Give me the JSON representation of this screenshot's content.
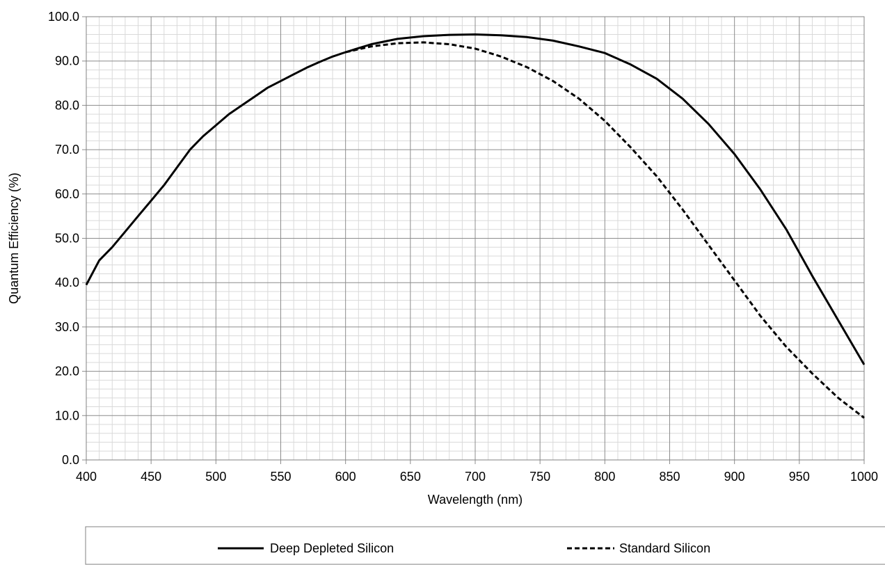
{
  "chart_data": {
    "type": "line",
    "xlabel": "Wavelength (nm)",
    "ylabel": "Quantum Efficiency (%)",
    "xlim": [
      400,
      1000
    ],
    "ylim": [
      0,
      100
    ],
    "x_ticks": [
      400,
      450,
      500,
      550,
      600,
      650,
      700,
      750,
      800,
      850,
      900,
      950,
      1000
    ],
    "y_ticks": [
      "0.0",
      "10.0",
      "20.0",
      "30.0",
      "40.0",
      "50.0",
      "60.0",
      "70.0",
      "80.0",
      "90.0",
      "100.0"
    ],
    "grid": "on",
    "legend_position": "bottom",
    "series": [
      {
        "name": "Deep Depleted Silicon",
        "style": "solid",
        "color": "#000000",
        "x": [
          400,
          410,
          420,
          430,
          440,
          450,
          460,
          470,
          480,
          490,
          500,
          510,
          520,
          530,
          540,
          550,
          560,
          570,
          580,
          590,
          600,
          620,
          640,
          660,
          680,
          700,
          720,
          740,
          760,
          780,
          800,
          820,
          840,
          860,
          880,
          900,
          920,
          940,
          960,
          980,
          1000
        ],
        "y": [
          39.5,
          45.0,
          48.0,
          51.5,
          55.0,
          58.5,
          62.0,
          66.0,
          70.0,
          73.0,
          75.5,
          78.0,
          80.0,
          82.0,
          84.0,
          85.5,
          87.0,
          88.5,
          89.8,
          91.0,
          92.0,
          93.8,
          95.0,
          95.6,
          95.9,
          96.0,
          95.8,
          95.4,
          94.6,
          93.3,
          91.8,
          89.2,
          86.0,
          81.5,
          75.8,
          69.0,
          61.0,
          52.0,
          41.5,
          31.5,
          21.5
        ]
      },
      {
        "name": "Standard Silicon",
        "style": "dashed",
        "color": "#000000",
        "x": [
          600,
          620,
          640,
          660,
          680,
          700,
          720,
          740,
          760,
          780,
          800,
          820,
          840,
          860,
          880,
          900,
          920,
          940,
          960,
          980,
          1000
        ],
        "y": [
          92.0,
          93.3,
          94.0,
          94.2,
          93.8,
          92.8,
          91.0,
          88.6,
          85.5,
          81.5,
          76.5,
          70.5,
          64.0,
          56.5,
          48.5,
          40.5,
          32.5,
          25.5,
          19.5,
          14.0,
          9.5
        ]
      }
    ]
  }
}
